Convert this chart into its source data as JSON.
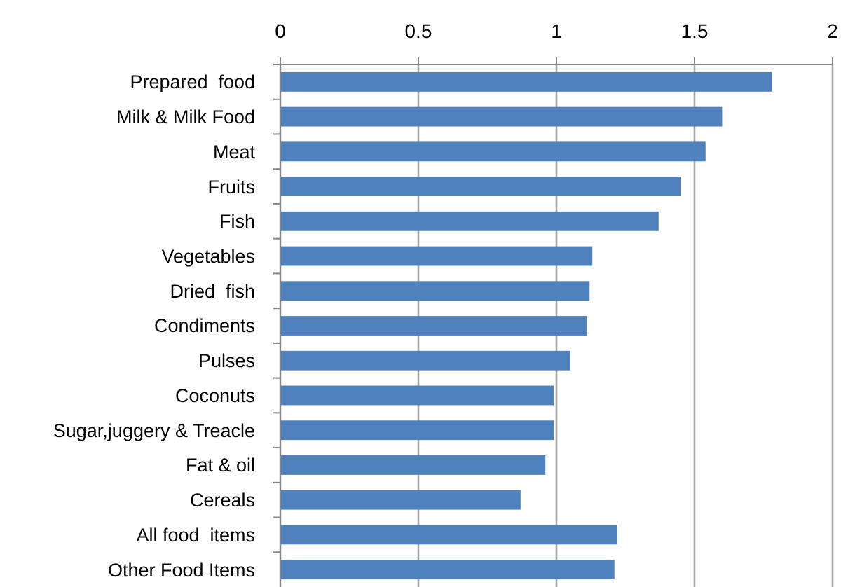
{
  "chart_data": {
    "type": "bar",
    "orientation": "horizontal",
    "categories": [
      "Prepared  food",
      "Milk & Milk Food",
      "Meat",
      "Fruits",
      "Fish",
      "Vegetables",
      "Dried  fish",
      "Condiments",
      "Pulses",
      "Coconuts",
      "Sugar,juggery & Treacle",
      "Fat & oil",
      "Cereals",
      "All food  items",
      "Other Food Items"
    ],
    "values": [
      1.78,
      1.6,
      1.54,
      1.45,
      1.37,
      1.13,
      1.12,
      1.11,
      1.05,
      0.99,
      0.99,
      0.96,
      0.87,
      1.22,
      1.21
    ],
    "color": "#4f81bd",
    "xlim": [
      0,
      2
    ],
    "xticks": [
      0,
      0.5,
      1,
      1.5,
      2
    ],
    "grid": "x"
  }
}
